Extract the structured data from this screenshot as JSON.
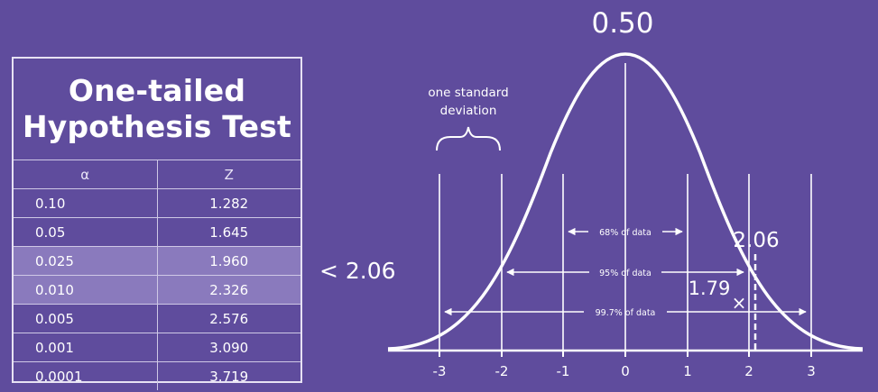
{
  "table": {
    "title_line1": "One-tailed",
    "title_line2": "Hypothesis Test",
    "col_alpha": "α",
    "col_z": "Z",
    "rows": [
      {
        "alpha": "0.10",
        "z": "1.282",
        "highlight": false
      },
      {
        "alpha": "0.05",
        "z": "1.645",
        "highlight": false
      },
      {
        "alpha": "0.025",
        "z": "1.960",
        "highlight": true
      },
      {
        "alpha": "0.010",
        "z": "2.326",
        "highlight": true
      },
      {
        "alpha": "0.005",
        "z": "2.576",
        "highlight": false
      },
      {
        "alpha": "0.001",
        "z": "3.090",
        "highlight": false
      },
      {
        "alpha": "0.0001",
        "z": "3.719",
        "highlight": false
      }
    ]
  },
  "comparison_label": "< 2.06",
  "diagram": {
    "peak_label": "0.50",
    "sd_label_line1": "one standard",
    "sd_label_line2": "deviation",
    "span_68": "68% of data",
    "span_95": "95% of data",
    "span_997": "99.7% of data",
    "critical_label": "2.06",
    "observed_label": "1.79",
    "observed_marker": "×",
    "ticks": [
      "-3",
      "-2",
      "-1",
      "0",
      "1",
      "2",
      "3"
    ]
  },
  "colors": {
    "background": "#5f4c9d",
    "highlight_row": "#8a7abd",
    "lines": "#ffffff"
  }
}
